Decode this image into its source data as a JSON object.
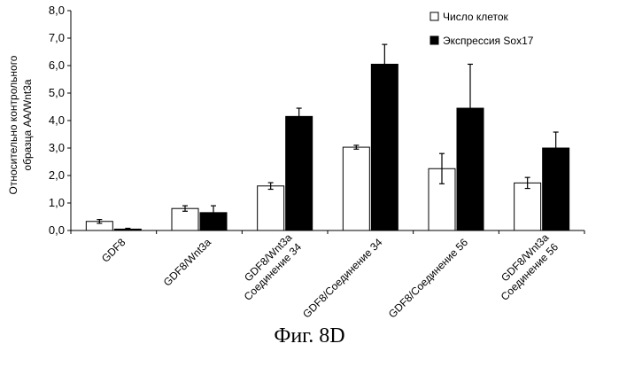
{
  "chart_data": {
    "type": "bar",
    "ylabel_lines": [
      "Относительно контрольного",
      "образца АА/Wnt3a"
    ],
    "ylim": [
      0,
      8
    ],
    "ytick_labels": [
      "0,0",
      "1,0",
      "2,0",
      "3,0",
      "4,0",
      "5,0",
      "6,0",
      "7,0",
      "8,0"
    ],
    "categories": [
      [
        "GDF8"
      ],
      [
        "GDF8/Wnt3a"
      ],
      [
        "GDF8/Wnt3a",
        "Соединение 34"
      ],
      [
        "GDF8/Соединение 34"
      ],
      [
        "GDF8/Соединение 56"
      ],
      [
        "GDF8/Wnt3a",
        "Соединение 56"
      ]
    ],
    "series": [
      {
        "name": "Число клеток",
        "color": "#ffffff",
        "values": [
          0.33,
          0.8,
          1.62,
          3.03,
          2.25,
          1.73
        ],
        "errors": [
          0.07,
          0.1,
          0.12,
          0.07,
          0.55,
          0.2
        ]
      },
      {
        "name": "Экспрессия Sox17",
        "color": "#000000",
        "values": [
          0.05,
          0.65,
          4.15,
          6.05,
          4.45,
          3.0
        ],
        "errors": [
          0.03,
          0.25,
          0.3,
          0.72,
          1.6,
          0.58
        ]
      }
    ],
    "legend_position": "top-right",
    "grid": false
  },
  "caption": "Фиг. 8D"
}
